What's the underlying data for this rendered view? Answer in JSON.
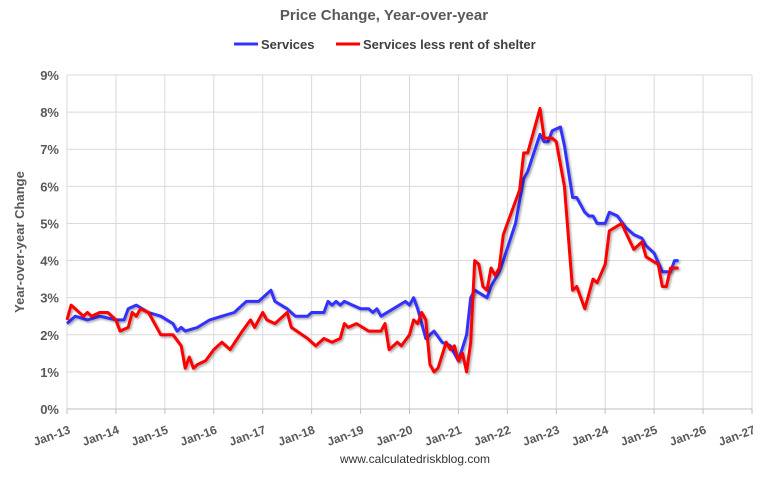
{
  "chart_data": {
    "type": "line",
    "title": "Price Change, Year-over-year",
    "ylabel": "Year-over-year Change",
    "xlabel": "",
    "ylim": [
      0,
      9
    ],
    "yticks": [
      "0%",
      "1%",
      "2%",
      "3%",
      "4%",
      "5%",
      "6%",
      "7%",
      "8%",
      "9%"
    ],
    "xlim": [
      "2013-01",
      "2027-01"
    ],
    "xticks": [
      "Jan-13",
      "Jan-14",
      "Jan-15",
      "Jan-16",
      "Jan-17",
      "Jan-18",
      "Jan-19",
      "Jan-20",
      "Jan-21",
      "Jan-22",
      "Jan-23",
      "Jan-24",
      "Jan-25",
      "Jan-26",
      "Jan-27"
    ],
    "grid": true,
    "legend_position": "top",
    "watermark": "www.calculatedriskblog.com",
    "series": [
      {
        "name": "Services",
        "color": "#3333ff",
        "points": [
          [
            "2013-01",
            2.3
          ],
          [
            "2013-03",
            2.5
          ],
          [
            "2013-06",
            2.4
          ],
          [
            "2013-09",
            2.5
          ],
          [
            "2014-01",
            2.4
          ],
          [
            "2014-03",
            2.4
          ],
          [
            "2014-04",
            2.7
          ],
          [
            "2014-06",
            2.8
          ],
          [
            "2014-09",
            2.6
          ],
          [
            "2014-12",
            2.5
          ],
          [
            "2015-03",
            2.3
          ],
          [
            "2015-04",
            2.1
          ],
          [
            "2015-05",
            2.2
          ],
          [
            "2015-06",
            2.1
          ],
          [
            "2015-09",
            2.2
          ],
          [
            "2015-12",
            2.4
          ],
          [
            "2016-03",
            2.5
          ],
          [
            "2016-06",
            2.6
          ],
          [
            "2016-09",
            2.9
          ],
          [
            "2016-12",
            2.9
          ],
          [
            "2017-01",
            3.0
          ],
          [
            "2017-03",
            3.2
          ],
          [
            "2017-04",
            2.9
          ],
          [
            "2017-07",
            2.7
          ],
          [
            "2017-09",
            2.5
          ],
          [
            "2017-12",
            2.5
          ],
          [
            "2018-01",
            2.6
          ],
          [
            "2018-04",
            2.6
          ],
          [
            "2018-05",
            2.9
          ],
          [
            "2018-06",
            2.8
          ],
          [
            "2018-07",
            2.9
          ],
          [
            "2018-08",
            2.8
          ],
          [
            "2018-09",
            2.9
          ],
          [
            "2018-11",
            2.8
          ],
          [
            "2019-01",
            2.7
          ],
          [
            "2019-03",
            2.7
          ],
          [
            "2019-04",
            2.6
          ],
          [
            "2019-05",
            2.7
          ],
          [
            "2019-06",
            2.5
          ],
          [
            "2019-09",
            2.7
          ],
          [
            "2019-12",
            2.9
          ],
          [
            "2020-01",
            2.8
          ],
          [
            "2020-02",
            3.0
          ],
          [
            "2020-03",
            2.7
          ],
          [
            "2020-05",
            1.9
          ],
          [
            "2020-07",
            2.1
          ],
          [
            "2020-09",
            1.8
          ],
          [
            "2020-11",
            1.7
          ],
          [
            "2021-01",
            1.3
          ],
          [
            "2021-03",
            2.0
          ],
          [
            "2021-04",
            3.0
          ],
          [
            "2021-05",
            3.2
          ],
          [
            "2021-08",
            3.0
          ],
          [
            "2021-09",
            3.3
          ],
          [
            "2021-11",
            3.7
          ],
          [
            "2021-12",
            4.0
          ],
          [
            "2022-03",
            5.0
          ],
          [
            "2022-05",
            6.2
          ],
          [
            "2022-06",
            6.4
          ],
          [
            "2022-09",
            7.4
          ],
          [
            "2022-10",
            7.2
          ],
          [
            "2022-11",
            7.2
          ],
          [
            "2022-12",
            7.5
          ],
          [
            "2023-02",
            7.6
          ],
          [
            "2023-03",
            7.1
          ],
          [
            "2023-05",
            5.7
          ],
          [
            "2023-06",
            5.7
          ],
          [
            "2023-08",
            5.3
          ],
          [
            "2023-09",
            5.2
          ],
          [
            "2023-10",
            5.2
          ],
          [
            "2023-11",
            5.0
          ],
          [
            "2024-01",
            5.0
          ],
          [
            "2024-02",
            5.3
          ],
          [
            "2024-04",
            5.2
          ],
          [
            "2024-06",
            4.9
          ],
          [
            "2024-08",
            4.7
          ],
          [
            "2024-10",
            4.6
          ],
          [
            "2024-11",
            4.4
          ],
          [
            "2025-01",
            4.2
          ],
          [
            "2025-03",
            3.7
          ],
          [
            "2025-05",
            3.7
          ],
          [
            "2025-06",
            4.0
          ],
          [
            "2025-07",
            4.0
          ]
        ]
      },
      {
        "name": "Services less rent of shelter",
        "color": "#ff0000",
        "points": [
          [
            "2013-01",
            2.4
          ],
          [
            "2013-02",
            2.8
          ],
          [
            "2013-03",
            2.7
          ],
          [
            "2013-05",
            2.5
          ],
          [
            "2013-06",
            2.6
          ],
          [
            "2013-07",
            2.5
          ],
          [
            "2013-09",
            2.6
          ],
          [
            "2013-11",
            2.6
          ],
          [
            "2014-01",
            2.4
          ],
          [
            "2014-02",
            2.1
          ],
          [
            "2014-04",
            2.2
          ],
          [
            "2014-05",
            2.6
          ],
          [
            "2014-06",
            2.5
          ],
          [
            "2014-07",
            2.7
          ],
          [
            "2014-09",
            2.6
          ],
          [
            "2014-12",
            2.0
          ],
          [
            "2015-03",
            2.0
          ],
          [
            "2015-05",
            1.7
          ],
          [
            "2015-06",
            1.1
          ],
          [
            "2015-07",
            1.4
          ],
          [
            "2015-08",
            1.1
          ],
          [
            "2015-09",
            1.2
          ],
          [
            "2015-11",
            1.3
          ],
          [
            "2016-01",
            1.6
          ],
          [
            "2016-03",
            1.8
          ],
          [
            "2016-05",
            1.6
          ],
          [
            "2016-08",
            2.1
          ],
          [
            "2016-10",
            2.4
          ],
          [
            "2016-11",
            2.2
          ],
          [
            "2017-01",
            2.6
          ],
          [
            "2017-02",
            2.4
          ],
          [
            "2017-04",
            2.3
          ],
          [
            "2017-07",
            2.6
          ],
          [
            "2017-08",
            2.2
          ],
          [
            "2017-12",
            1.9
          ],
          [
            "2018-02",
            1.7
          ],
          [
            "2018-04",
            1.9
          ],
          [
            "2018-06",
            1.8
          ],
          [
            "2018-08",
            1.9
          ],
          [
            "2018-09",
            2.3
          ],
          [
            "2018-10",
            2.2
          ],
          [
            "2018-12",
            2.3
          ],
          [
            "2019-03",
            2.1
          ],
          [
            "2019-06",
            2.1
          ],
          [
            "2019-07",
            2.3
          ],
          [
            "2019-08",
            1.6
          ],
          [
            "2019-10",
            1.8
          ],
          [
            "2019-11",
            1.7
          ],
          [
            "2020-01",
            2.0
          ],
          [
            "2020-02",
            2.4
          ],
          [
            "2020-03",
            2.3
          ],
          [
            "2020-04",
            2.6
          ],
          [
            "2020-05",
            2.4
          ],
          [
            "2020-06",
            1.2
          ],
          [
            "2020-07",
            1.0
          ],
          [
            "2020-08",
            1.1
          ],
          [
            "2020-10",
            1.8
          ],
          [
            "2020-11",
            1.6
          ],
          [
            "2020-12",
            1.7
          ],
          [
            "2021-01",
            1.3
          ],
          [
            "2021-02",
            1.5
          ],
          [
            "2021-03",
            1.0
          ],
          [
            "2021-04",
            1.8
          ],
          [
            "2021-05",
            4.0
          ],
          [
            "2021-06",
            3.9
          ],
          [
            "2021-07",
            3.3
          ],
          [
            "2021-08",
            3.2
          ],
          [
            "2021-09",
            3.8
          ],
          [
            "2021-10",
            3.6
          ],
          [
            "2021-11",
            3.8
          ],
          [
            "2021-12",
            4.7
          ],
          [
            "2022-04",
            5.9
          ],
          [
            "2022-05",
            6.9
          ],
          [
            "2022-06",
            6.9
          ],
          [
            "2022-09",
            8.1
          ],
          [
            "2022-10",
            7.3
          ],
          [
            "2022-12",
            7.3
          ],
          [
            "2023-01",
            7.2
          ],
          [
            "2023-03",
            6.0
          ],
          [
            "2023-05",
            3.2
          ],
          [
            "2023-06",
            3.3
          ],
          [
            "2023-08",
            2.7
          ],
          [
            "2023-10",
            3.5
          ],
          [
            "2023-11",
            3.4
          ],
          [
            "2024-01",
            3.9
          ],
          [
            "2024-02",
            4.8
          ],
          [
            "2024-05",
            5.0
          ],
          [
            "2024-08",
            4.3
          ],
          [
            "2024-10",
            4.5
          ],
          [
            "2024-11",
            4.1
          ],
          [
            "2025-02",
            3.9
          ],
          [
            "2025-03",
            3.3
          ],
          [
            "2025-04",
            3.3
          ],
          [
            "2025-05",
            3.8
          ],
          [
            "2025-07",
            3.8
          ]
        ]
      }
    ]
  }
}
